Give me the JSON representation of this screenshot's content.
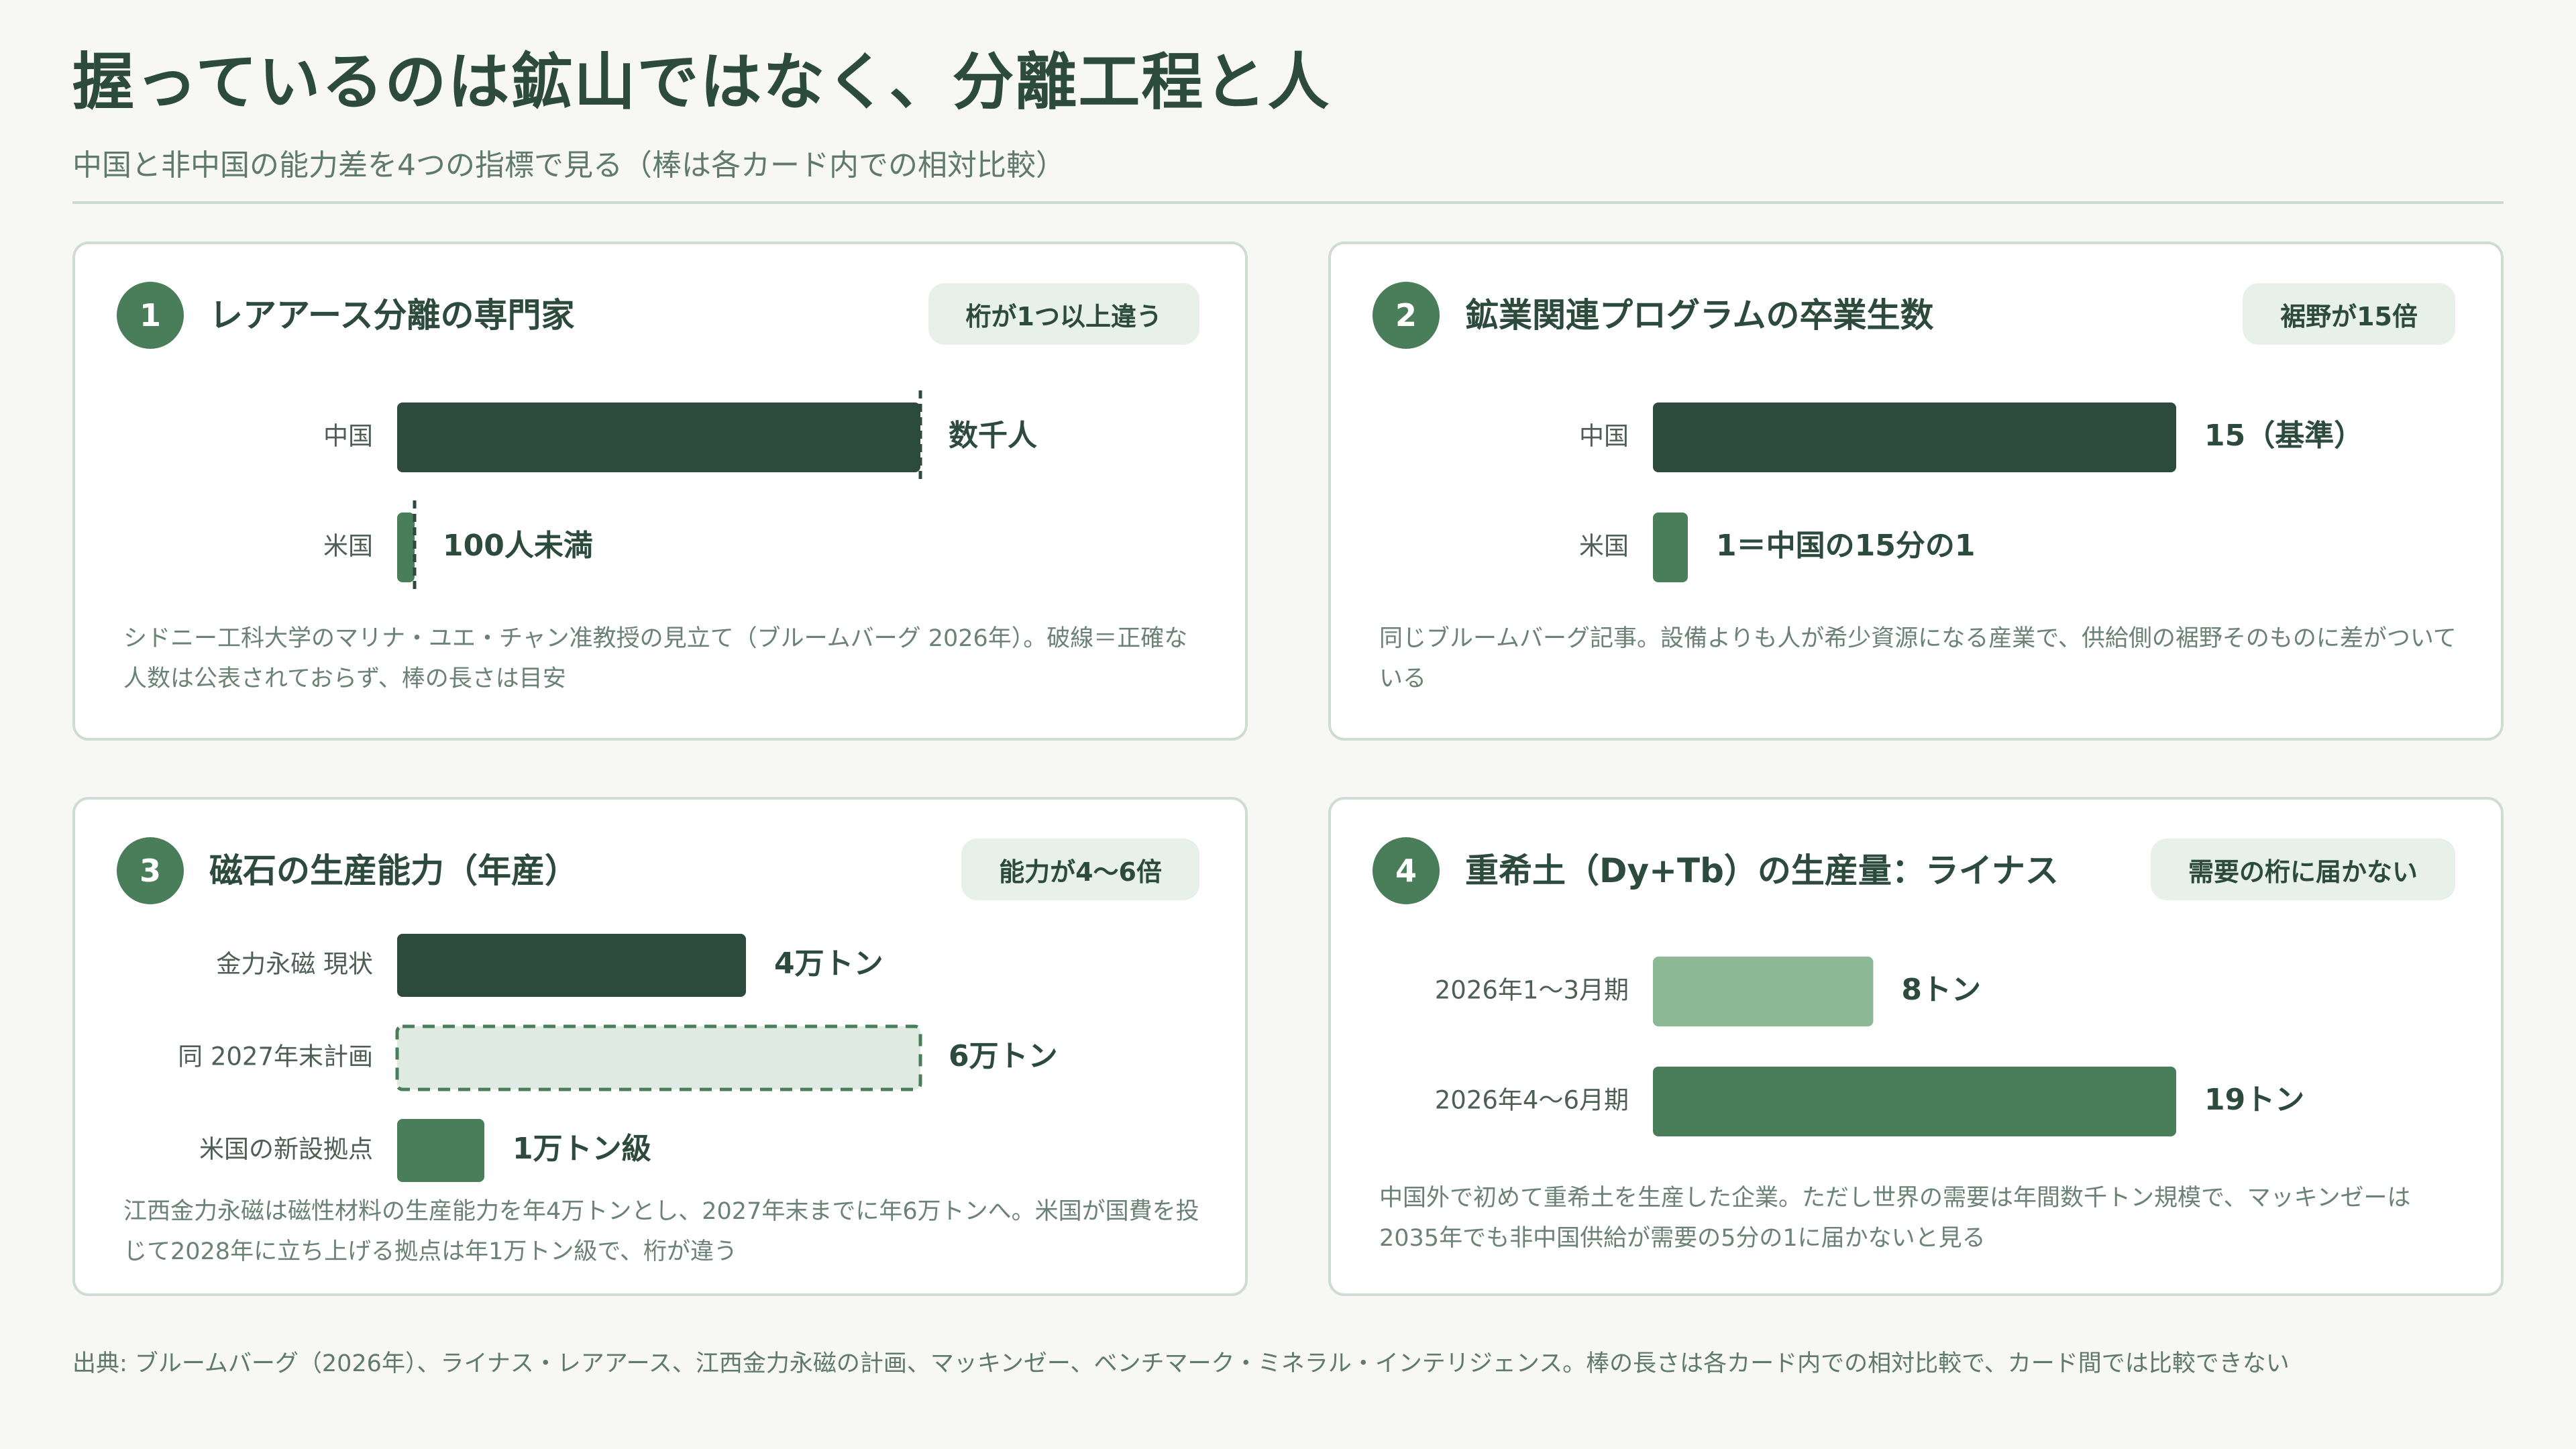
{
  "header": {
    "title": "握っているのは鉱山ではなく、分離工程と人",
    "subtitle": "中国と非中国の能力差を4つの指標で見る（棒は各カード内での相対比較）"
  },
  "colors": {
    "dark_green": "#2d4a3e",
    "mid_green": "#4a7d5a",
    "light_green": "#8db896",
    "pale_green": "#dfeae2"
  },
  "cards": [
    {
      "number": "1",
      "title": "レアアース分離の専門家",
      "badge": "桁が1つ以上違う",
      "note": "シドニー工科大学のマリナ・ユエ・チャン准教授の見立て（ブルームバーグ 2026年）。破線＝正確な人数は公表されておらず、棒の長さは目安"
    },
    {
      "number": "2",
      "title": "鉱業関連プログラムの卒業生数",
      "badge": "裾野が15倍",
      "note": "同じブルームバーグ記事。設備よりも人が希少資源になる産業で、供給側の裾野そのものに差がついている"
    },
    {
      "number": "3",
      "title": "磁石の生産能力（年産）",
      "badge": "能力が4〜6倍",
      "note": "江西金力永磁は磁性材料の生産能力を年4万トンとし、2027年末までに年6万トンへ。米国が国費を投じて2028年に立ち上げる拠点は年1万トン級で、桁が違う"
    },
    {
      "number": "4",
      "title": "重希土（Dy+Tb）の生産量：ライナス",
      "badge": "需要の桁に届かない",
      "note": "中国外で初めて重希土を生産した企業。ただし世界の需要は年間数千トン規模で、マッキンゼーは2035年でも非中国供給が需要の5分の1に届かないと見る"
    }
  ],
  "chart_data": [
    {
      "type": "bar",
      "orientation": "horizontal",
      "categories": [
        "中国",
        "米国"
      ],
      "values": [
        30,
        1
      ],
      "value_labels": [
        "数千人",
        "100人未満"
      ],
      "estimated": true,
      "colors": [
        "#2d4a3e",
        "#4a7d5a"
      ]
    },
    {
      "type": "bar",
      "orientation": "horizontal",
      "categories": [
        "中国",
        "米国"
      ],
      "values": [
        15,
        1
      ],
      "value_labels": [
        "15（基準）",
        "1＝中国の15分の1"
      ],
      "colors": [
        "#2d4a3e",
        "#4a7d5a"
      ]
    },
    {
      "type": "bar",
      "orientation": "horizontal",
      "categories": [
        "金力永磁 現状",
        "同 2027年末計画",
        "米国の新設拠点"
      ],
      "values": [
        4,
        6,
        1
      ],
      "value_labels": [
        "4万トン",
        "6万トン",
        "1万トン級"
      ],
      "planned": [
        false,
        true,
        false
      ],
      "colors": [
        "#2d4a3e",
        "#dfeae2",
        "#4a7d5a"
      ]
    },
    {
      "type": "bar",
      "orientation": "horizontal",
      "categories": [
        "2026年1〜3月期",
        "2026年4〜6月期"
      ],
      "values": [
        8,
        19
      ],
      "value_labels": [
        "8トン",
        "19トン"
      ],
      "colors": [
        "#8db896",
        "#4a7d5a"
      ]
    }
  ],
  "footer": {
    "source": "出典: ブルームバーグ（2026年）、ライナス・レアアース、江西金力永磁の計画、マッキンゼー、ベンチマーク・ミネラル・インテリジェンス。棒の長さは各カード内での相対比較で、カード間では比較できない"
  }
}
